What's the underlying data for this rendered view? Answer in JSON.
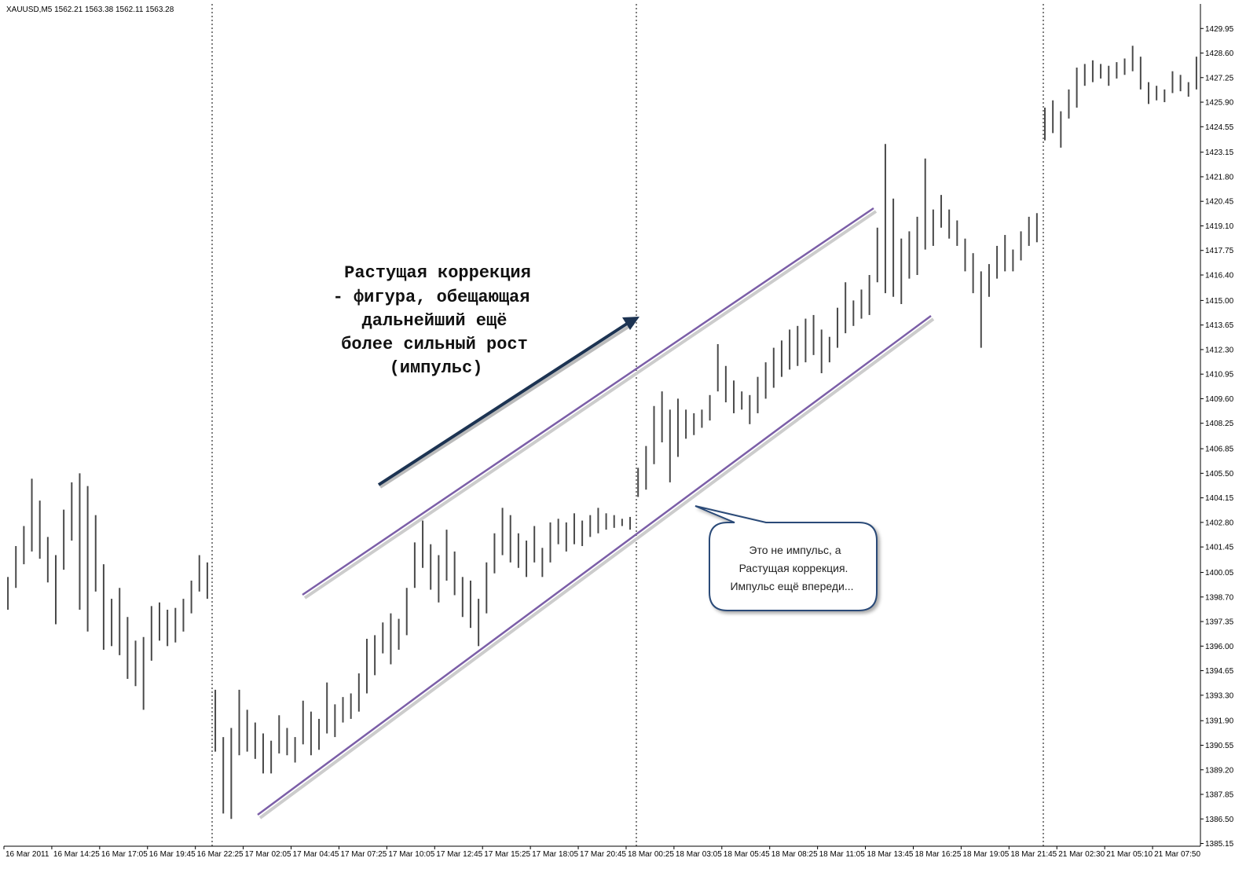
{
  "chart_data": {
    "type": "ohlc",
    "symbol_info": "XAUUSD,M5  1562.21 1563.38 1562.11 1563.28",
    "annotation": [
      "Растущая коррекция",
      "- фигура, обещающая",
      "дальнейший ещё",
      "более сильный рост",
      "(импульс)"
    ],
    "callout": [
      "Это не импульс, а",
      "Растущая коррекция.",
      "Импульс  ещё впереди..."
    ],
    "color": "#4a4a4a",
    "ylim": [
      1385.0,
      1431.3
    ],
    "yticks": [
      1429.95,
      {
        "value": 1428.6,
        "label": "1428.60"
      },
      1427.25,
      {
        "value": 1425.9,
        "label": "1425.90"
      },
      1424.55,
      1423.15,
      {
        "value": 1421.8,
        "label": "1421.80"
      },
      1420.45,
      {
        "value": 1419.1,
        "label": "1419.10"
      },
      1417.75,
      {
        "value": 1416.4,
        "label": "1416.40"
      },
      {
        "value": 1415,
        "label": "1415.00"
      },
      1413.65,
      {
        "value": 1412.3,
        "label": "1412.30"
      },
      1410.95,
      {
        "value": 1409.6,
        "label": "1409.60"
      },
      1408.25,
      1406.85,
      {
        "value": 1405.5,
        "label": "1405.50"
      },
      1404.15,
      {
        "value": 1402.8,
        "label": "1402.80"
      },
      1401.45,
      1400.05,
      {
        "value": 1398.7,
        "label": "1398.70"
      },
      1397.35,
      {
        "value": 1396,
        "label": "1396.00"
      },
      1394.65,
      {
        "value": 1393.3,
        "label": "1393.30"
      },
      {
        "value": 1391.9,
        "label": "1391.90"
      },
      1390.55,
      {
        "value": 1389.2,
        "label": "1389.20"
      },
      1387.85,
      {
        "value": 1386.5,
        "label": "1386.50"
      },
      1385.15
    ],
    "categories": [
      "16 Mar 2011",
      null,
      null,
      null,
      null,
      null,
      "16 Mar 14:25",
      null,
      null,
      null,
      null,
      null,
      "16 Mar 17:05",
      null,
      null,
      null,
      null,
      null,
      "16 Mar 19:45",
      null,
      null,
      null,
      null,
      null,
      "16 Mar 22:25",
      null,
      null,
      null,
      null,
      null,
      "17 Mar 02:05",
      null,
      null,
      null,
      null,
      null,
      "17 Mar 04:45",
      null,
      null,
      null,
      null,
      null,
      "17 Mar 07:25",
      null,
      null,
      null,
      null,
      null,
      "17 Mar 10:05",
      null,
      null,
      null,
      null,
      null,
      "17 Mar 12:45",
      null,
      null,
      null,
      null,
      null,
      "17 Mar 15:25",
      null,
      null,
      null,
      null,
      null,
      "17 Mar 18:05",
      null,
      null,
      null,
      null,
      null,
      "17 Mar 20:45",
      null,
      null,
      null,
      null,
      null,
      "18 Mar 00:25",
      null,
      null,
      null,
      null,
      null,
      "18 Mar 03:05",
      null,
      null,
      null,
      null,
      null,
      "18 Mar 05:45",
      null,
      null,
      null,
      null,
      null,
      "18 Mar 08:25",
      null,
      null,
      null,
      null,
      null,
      "18 Mar 11:05",
      null,
      null,
      null,
      null,
      null,
      "18 Mar 13:45",
      null,
      null,
      null,
      null,
      null,
      "18 Mar 16:25",
      null,
      null,
      null,
      null,
      null,
      "18 Mar 19:05",
      null,
      null,
      null,
      null,
      null,
      "18 Mar 21:45",
      null,
      null,
      null,
      null,
      null,
      "21 Mar 02:30",
      null,
      null,
      null,
      null,
      null,
      "21 Mar 05:10",
      null,
      null,
      null,
      null,
      null,
      "21 Mar 07:50",
      null,
      null,
      null,
      null,
      null
    ],
    "high": [
      1399.8,
      1401.5,
      1402.6,
      1405.2,
      1404.0,
      1402.0,
      1401.0,
      1403.5,
      1405.0,
      1405.5,
      1404.8,
      1403.2,
      1400.5,
      1398.6,
      1399.2,
      1397.6,
      1396.3,
      1396.5,
      1398.2,
      1398.4,
      1398.0,
      1398.1,
      1398.6,
      1399.6,
      1401.0,
      1400.6,
      1393.6,
      1391.0,
      1391.5,
      1393.6,
      1392.5,
      1391.8,
      1391.2,
      1390.8,
      1392.2,
      1391.5,
      1391.0,
      1393.0,
      1392.4,
      1392.0,
      1394.0,
      1392.8,
      1393.2,
      1393.4,
      1394.5,
      1396.4,
      1396.6,
      1397.3,
      1397.8,
      1397.5,
      1399.2,
      1401.7,
      1402.9,
      1401.6,
      1401.0,
      1402.4,
      1401.2,
      1399.8,
      1399.6,
      1398.6,
      1400.6,
      1402.2,
      1403.6,
      1403.2,
      1402.2,
      1401.8,
      1402.6,
      1401.4,
      1402.8,
      1403.0,
      1402.8,
      1403.3,
      1402.9,
      1403.2,
      1403.6,
      1403.3,
      1403.2,
      1403.0,
      1403.1,
      1405.8,
      1407.0,
      1409.2,
      1410.0,
      1409.0,
      1409.6,
      1409.0,
      1408.8,
      1409.0,
      1409.8,
      1412.6,
      1411.4,
      1410.6,
      1410.0,
      1409.8,
      1410.8,
      1411.6,
      1412.4,
      1412.8,
      1413.4,
      1413.6,
      1414.0,
      1414.2,
      1413.4,
      1413.0,
      1414.6,
      1416.0,
      1415.0,
      1415.6,
      1416.4,
      1419.0,
      1423.6,
      1420.6,
      1418.4,
      1418.8,
      1419.6,
      1422.8,
      1420.0,
      1420.8,
      1420.0,
      1419.4,
      1418.4,
      1417.6,
      1416.6,
      1417.0,
      1418.0,
      1418.6,
      1417.8,
      1418.8,
      1419.6,
      1419.8,
      1425.6,
      1426.0,
      1425.4,
      1426.6,
      1427.8,
      1428.0,
      1428.2,
      1428.0,
      1427.9,
      1428.1,
      1428.3,
      1429.0,
      1428.4,
      1427.0,
      1426.8,
      1426.6,
      1427.6,
      1427.4,
      1427.0,
      1428.4
    ],
    "low": [
      1398.0,
      1399.2,
      1400.5,
      1401.2,
      1400.8,
      1399.5,
      1397.2,
      1400.2,
      1401.8,
      1398.0,
      1396.8,
      1399.0,
      1395.8,
      1396.0,
      1395.5,
      1394.2,
      1393.8,
      1392.5,
      1395.2,
      1396.3,
      1396.0,
      1396.2,
      1396.8,
      1397.8,
      1399.0,
      1398.6,
      1390.2,
      1386.8,
      1386.5,
      1390.0,
      1390.2,
      1389.8,
      1389.0,
      1389.0,
      1390.1,
      1390.0,
      1389.6,
      1390.6,
      1390.0,
      1390.3,
      1391.2,
      1391.0,
      1391.8,
      1392.0,
      1392.4,
      1393.4,
      1394.4,
      1395.6,
      1395.0,
      1395.8,
      1396.6,
      1399.2,
      1400.3,
      1399.1,
      1398.4,
      1399.6,
      1398.8,
      1397.6,
      1397.0,
      1396.0,
      1397.8,
      1400.0,
      1401.0,
      1400.6,
      1400.3,
      1399.8,
      1400.6,
      1399.8,
      1400.6,
      1401.6,
      1401.2,
      1401.6,
      1401.5,
      1402.0,
      1402.2,
      1402.4,
      1402.5,
      1402.6,
      1402.4,
      1404.2,
      1404.6,
      1406.0,
      1407.2,
      1405.0,
      1406.4,
      1407.4,
      1407.6,
      1408.0,
      1408.4,
      1410.0,
      1409.4,
      1408.8,
      1409.0,
      1408.2,
      1408.8,
      1409.6,
      1410.2,
      1410.8,
      1411.2,
      1411.4,
      1411.6,
      1412.0,
      1411.0,
      1411.6,
      1412.4,
      1413.2,
      1413.6,
      1414.0,
      1414.2,
      1416.0,
      1415.4,
      1415.2,
      1414.8,
      1416.2,
      1416.4,
      1417.8,
      1418.0,
      1419.0,
      1418.4,
      1418.0,
      1416.6,
      1415.4,
      1412.4,
      1415.2,
      1416.2,
      1416.6,
      1416.6,
      1417.2,
      1418.0,
      1418.2,
      1423.8,
      1424.2,
      1423.4,
      1425.0,
      1425.6,
      1426.8,
      1427.0,
      1427.2,
      1426.8,
      1427.2,
      1427.4,
      1427.6,
      1426.6,
      1425.8,
      1426.0,
      1425.9,
      1426.4,
      1426.5,
      1426.2,
      1426.6
    ]
  }
}
